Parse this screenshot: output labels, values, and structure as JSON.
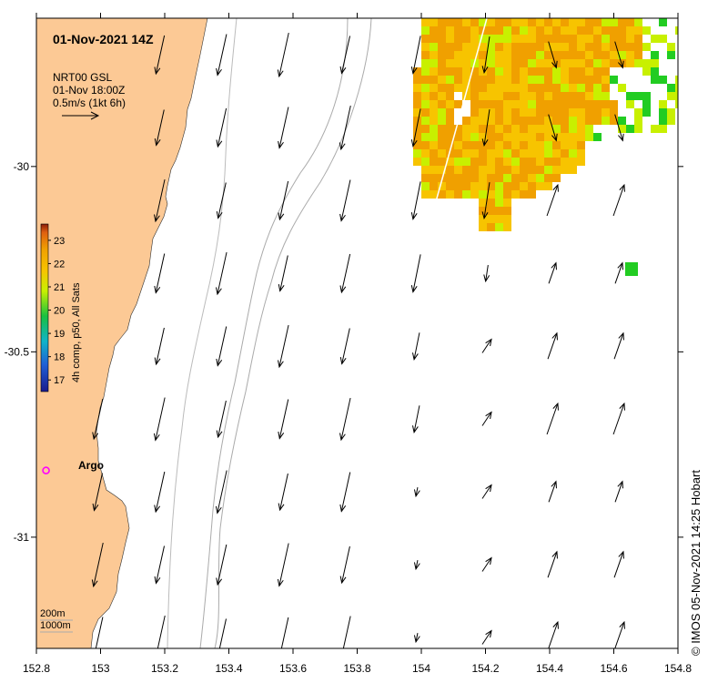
{
  "map": {
    "title": "01-Nov-2021 14Z",
    "legend": {
      "product": "NRT00 GSL",
      "time": "01-Nov 18:00Z",
      "scale": "0.5m/s (1kt 6h)"
    },
    "colorbar": {
      "label": "4h comp, p50, All Sats",
      "ticks": [
        "23",
        "22",
        "21",
        "20",
        "19",
        "18",
        "17"
      ],
      "tick_values": [
        23,
        22,
        21,
        20,
        19,
        18,
        17
      ],
      "range": [
        16.5,
        23.7
      ]
    },
    "place": {
      "name": "Argo",
      "lon": 152.83,
      "lat": -30.82
    },
    "bathymetry_labels": [
      "200m",
      "1000m"
    ],
    "credit": "© IMOS 05-Nov-2021 14:25 Hobart",
    "x_ticks": [
      "152.8",
      "153",
      "153.2",
      "153.4",
      "153.6",
      "153.8",
      "154",
      "154.2",
      "154.4",
      "154.6",
      "154.8"
    ],
    "x_tick_values": [
      152.8,
      153.0,
      153.2,
      153.4,
      153.6,
      153.8,
      154.0,
      154.2,
      154.4,
      154.6,
      154.8
    ],
    "y_ticks": [
      "-30",
      "-30.5",
      "-31"
    ],
    "y_tick_values": [
      -30.0,
      -30.5,
      -31.0
    ],
    "lon_range": [
      152.8,
      154.8
    ],
    "lat_range": [
      -29.6,
      -31.3
    ],
    "colors": {
      "land": "#fcc995",
      "sst_warm": "#f0a000",
      "sst_mid": "#f7c400",
      "sst_cool": "#c8f000",
      "sst_green": "#22cc22",
      "argo_marker": "#ff00ff",
      "isobath": "#aaaaaa"
    }
  }
}
